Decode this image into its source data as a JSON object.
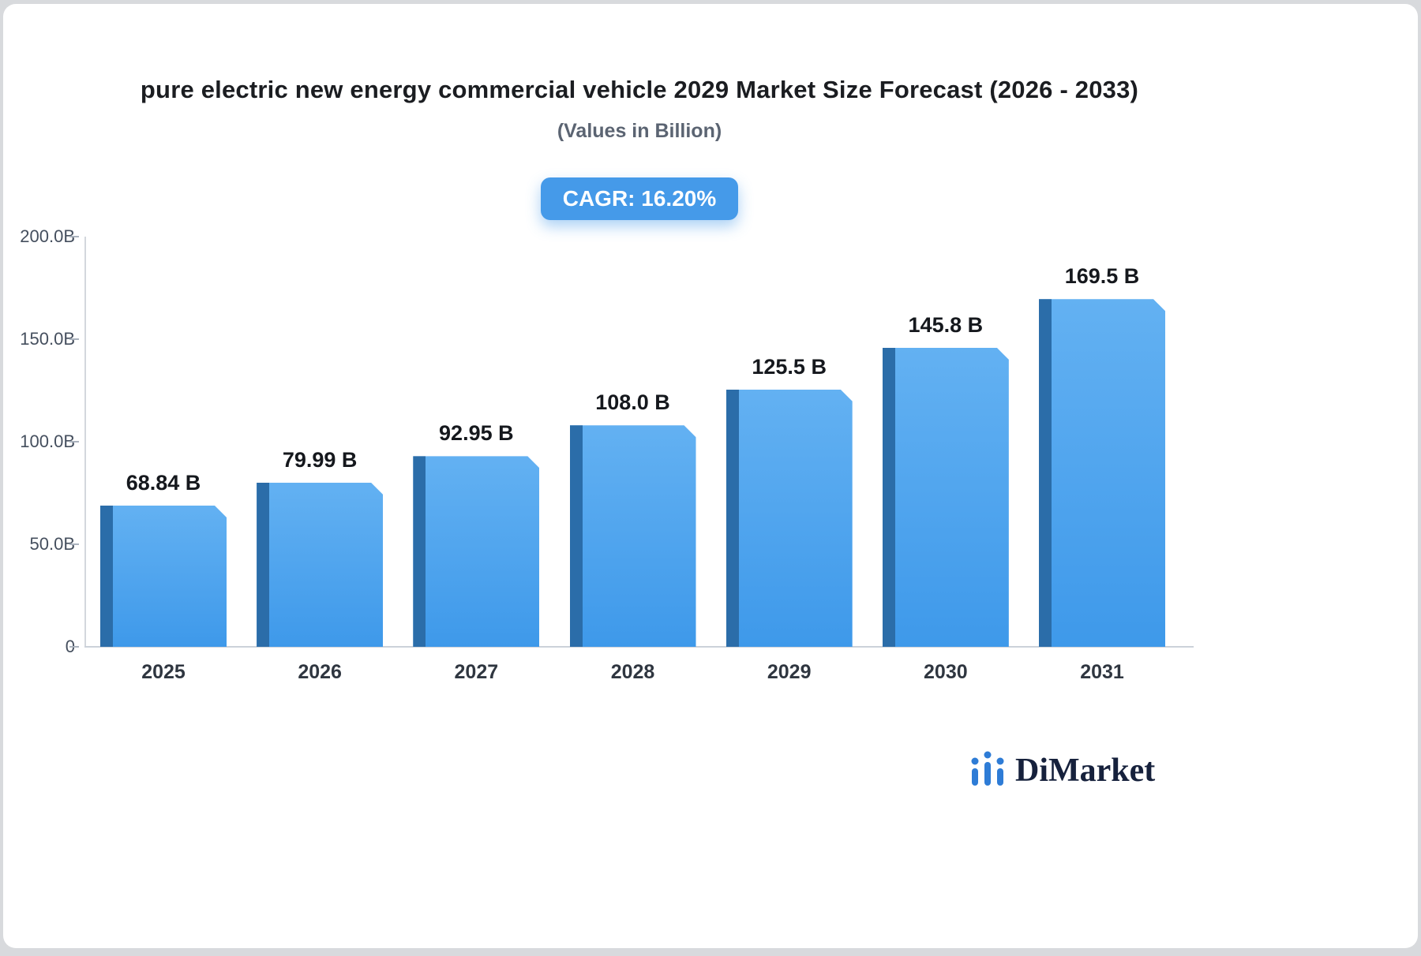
{
  "header": {
    "title": "pure electric new energy commercial vehicle 2029 Market Size Forecast (2026 - 2033)",
    "subtitle": "(Values in Billion)",
    "cagr_label": "CAGR: 16.20%"
  },
  "footer": {
    "brand": "DiMarket"
  },
  "colors": {
    "bar": "#42a0ee",
    "bar_side": "#2b6da9",
    "badge": "#459ae9",
    "axis": "#d3d7dd",
    "brand_text": "#16213c",
    "brand_icon": "#2e7cd6"
  },
  "chart_data": {
    "type": "bar",
    "title": "pure electric new energy commercial vehicle 2029 Market Size Forecast (2026 - 2033)",
    "subtitle": "(Values in Billion)",
    "annotation": "CAGR: 16.20%",
    "categories": [
      "2025",
      "2026",
      "2027",
      "2028",
      "2029",
      "2030",
      "2031"
    ],
    "values": [
      68.84,
      79.99,
      92.95,
      108.0,
      125.5,
      145.8,
      169.5
    ],
    "bar_labels": [
      "68.84 B",
      "79.99 B",
      "92.95 B",
      "108.0 B",
      "125.5 B",
      "145.8 B",
      "169.5 B"
    ],
    "xlabel": "",
    "ylabel": "",
    "ylim": [
      0,
      200
    ],
    "yticks": [
      {
        "value": 0,
        "label": "0"
      },
      {
        "value": 50,
        "label": "50.0B"
      },
      {
        "value": 100,
        "label": "100.0B"
      },
      {
        "value": 150,
        "label": "150.0B"
      },
      {
        "value": 200,
        "label": "200.0B"
      }
    ],
    "grid": false,
    "legend": false
  }
}
